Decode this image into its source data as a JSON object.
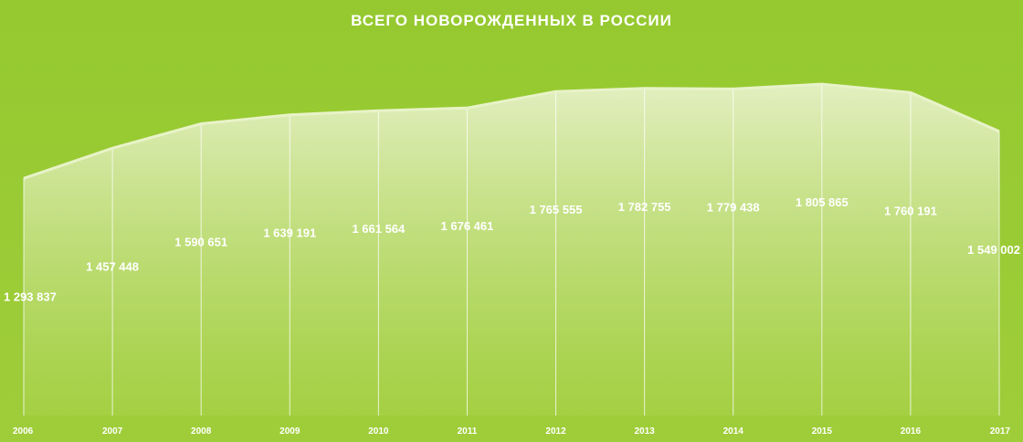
{
  "chart_data": {
    "type": "area",
    "title": "ВСЕГО НОВОРОЖДЕННЫХ В РОССИИ",
    "xlabel": "",
    "ylabel": "",
    "categories": [
      "2006",
      "2007",
      "2008",
      "2009",
      "2010",
      "2011",
      "2012",
      "2013",
      "2014",
      "2015",
      "2016",
      "2017"
    ],
    "values": [
      1293837,
      1457448,
      1590651,
      1639191,
      1661564,
      1676461,
      1765555,
      1782755,
      1779438,
      1805865,
      1760191,
      1549002
    ],
    "value_labels": [
      "1 293 837",
      "1 457 448",
      "1 590 651",
      "1 639 191",
      "1 661 564",
      "1 676 461",
      "1 765 555",
      "1 782 755",
      "1 779 438",
      "1 805 865",
      "1 760 191",
      "1 549 002"
    ],
    "ylim": [
      0,
      2000000
    ],
    "grid": false,
    "legend": "none",
    "colors": {
      "background": "#9acb34",
      "area_fill_top": "#e3efc2",
      "area_line": "#e8f3c8",
      "text": "#ffffff"
    }
  }
}
